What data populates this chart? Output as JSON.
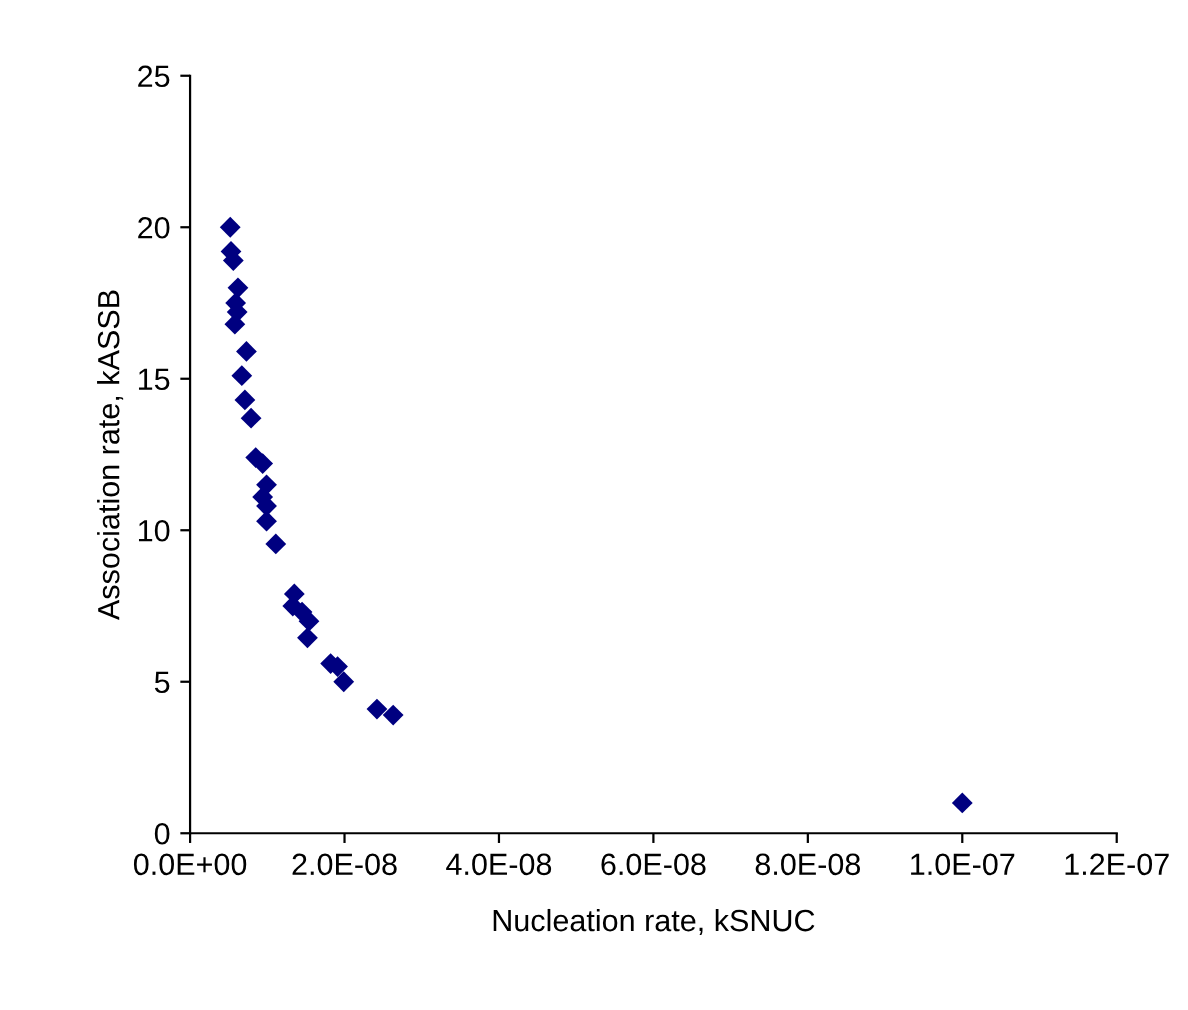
{
  "chart_data": {
    "type": "scatter",
    "xlabel": "Nucleation rate, kSNUC",
    "ylabel": "Association rate, kASSB",
    "x": [
      5.2e-09,
      5.3e-09,
      5.6e-09,
      6.2e-09,
      5.9e-09,
      6.1e-09,
      5.8e-09,
      7.3e-09,
      6.7e-09,
      7.1e-09,
      7.9e-09,
      8.5e-09,
      9.4e-09,
      9.9e-09,
      9.4e-09,
      9.9e-09,
      9.9e-09,
      1.11e-08,
      1.35e-08,
      1.33e-08,
      1.45e-08,
      1.54e-08,
      1.52e-08,
      1.82e-08,
      1.91e-08,
      1.99e-08,
      2.42e-08,
      2.63e-08,
      1e-07
    ],
    "values": [
      20.0,
      19.2,
      18.9,
      18.0,
      17.5,
      17.2,
      16.8,
      15.9,
      15.1,
      14.3,
      13.7,
      12.4,
      12.2,
      11.5,
      11.1,
      10.8,
      10.3,
      9.55,
      7.9,
      7.5,
      7.3,
      7.0,
      6.45,
      5.6,
      5.5,
      5.0,
      4.1,
      3.9,
      1.0
    ],
    "color": "#000080",
    "marker": "diamond",
    "xlim": [
      0,
      1.2e-07
    ],
    "ylim": [
      0,
      25
    ],
    "xticks": [
      {
        "value": 0,
        "label": "0.0E+00"
      },
      {
        "value": 2e-08,
        "label": "2.0E-08"
      },
      {
        "value": 4e-08,
        "label": "4.0E-08"
      },
      {
        "value": 6e-08,
        "label": "6.0E-08"
      },
      {
        "value": 8e-08,
        "label": "8.0E-08"
      },
      {
        "value": 1e-07,
        "label": "1.0E-07"
      },
      {
        "value": 1.2e-07,
        "label": "1.2E-07"
      }
    ],
    "yticks": [
      0,
      5,
      10,
      15,
      20,
      25
    ],
    "grid": false,
    "legend": false
  }
}
